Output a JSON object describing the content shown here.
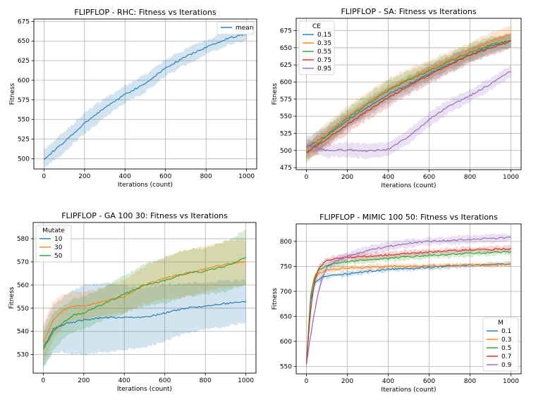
{
  "chart_data": [
    {
      "type": "line",
      "title": "FLIPFLOP - RHC: Fitness vs Iterations",
      "xlabel": "Iterations (count)",
      "ylabel": "Fitness",
      "xlim": [
        -50,
        1050
      ],
      "ylim": [
        487,
        678
      ],
      "xticks": [
        0,
        200,
        400,
        600,
        800,
        1000
      ],
      "yticks": [
        500,
        525,
        550,
        575,
        600,
        625,
        650,
        675
      ],
      "grid": true,
      "legend": {
        "title": "",
        "position": "upper-right"
      },
      "x": [
        0,
        100,
        200,
        300,
        400,
        500,
        600,
        700,
        800,
        900,
        1000
      ],
      "series": [
        {
          "name": "mean",
          "color": "#1f77b4",
          "values": [
            500,
            521,
            545,
            565,
            582,
            596,
            616,
            630,
            642,
            653,
            659
          ],
          "band": [
            12,
            13,
            13,
            12,
            11,
            11,
            10,
            10,
            9,
            9,
            8
          ]
        }
      ]
    },
    {
      "type": "line",
      "title": "FLIPFLOP - SA: Fitness vs Iterations",
      "xlabel": "Iterations (count)",
      "ylabel": "Fitness",
      "xlim": [
        -50,
        1050
      ],
      "ylim": [
        472,
        693
      ],
      "xticks": [
        0,
        200,
        400,
        600,
        800,
        1000
      ],
      "yticks": [
        475,
        500,
        525,
        550,
        575,
        600,
        625,
        650,
        675
      ],
      "grid": true,
      "legend": {
        "title": "CE",
        "position": "upper-left"
      },
      "x": [
        0,
        100,
        200,
        300,
        400,
        500,
        600,
        700,
        800,
        900,
        1000
      ],
      "series": [
        {
          "name": "0.15",
          "color": "#1f77b4",
          "values": [
            505,
            522,
            544,
            563,
            582,
            597,
            612,
            626,
            640,
            652,
            660
          ],
          "band": [
            14,
            14,
            13,
            13,
            13,
            12,
            12,
            12,
            11,
            11,
            10
          ]
        },
        {
          "name": "0.35",
          "color": "#ff7f0e",
          "values": [
            500,
            525,
            550,
            570,
            590,
            605,
            618,
            632,
            645,
            660,
            670
          ],
          "band": [
            14,
            14,
            15,
            15,
            15,
            14,
            13,
            13,
            12,
            12,
            12
          ]
        },
        {
          "name": "0.55",
          "color": "#2ca02c",
          "values": [
            496,
            522,
            547,
            568,
            588,
            603,
            616,
            630,
            643,
            654,
            661
          ],
          "band": [
            13,
            13,
            14,
            14,
            14,
            13,
            13,
            12,
            12,
            11,
            11
          ]
        },
        {
          "name": "0.75",
          "color": "#d62728",
          "values": [
            497,
            517,
            538,
            558,
            577,
            594,
            610,
            625,
            639,
            650,
            659
          ],
          "band": [
            12,
            13,
            13,
            13,
            14,
            13,
            13,
            12,
            12,
            11,
            11
          ]
        },
        {
          "name": "0.95",
          "color": "#9467bd",
          "values": [
            507,
            500,
            501,
            499,
            502,
            520,
            545,
            565,
            580,
            597,
            616
          ],
          "band": [
            8,
            10,
            10,
            10,
            10,
            10,
            10,
            10,
            9,
            9,
            8
          ]
        }
      ]
    },
    {
      "type": "line",
      "title": "FLIPFLOP - GA 100 30: Fitness vs Iterations",
      "xlabel": "Iterations (count)",
      "ylabel": "Fitness",
      "xlim": [
        -50,
        1050
      ],
      "ylim": [
        522,
        587
      ],
      "xticks": [
        0,
        200,
        400,
        600,
        800,
        1000
      ],
      "yticks": [
        530,
        540,
        550,
        560,
        570,
        580
      ],
      "grid": true,
      "legend": {
        "title": "Mutate",
        "position": "upper-left"
      },
      "x": [
        0,
        50,
        100,
        150,
        200,
        300,
        400,
        500,
        600,
        700,
        800,
        900,
        1000
      ],
      "series": [
        {
          "name": "10",
          "color": "#1f77b4",
          "values": [
            533,
            541,
            543,
            544,
            545,
            546,
            546,
            546,
            548,
            550,
            551,
            552,
            553
          ],
          "band": [
            9,
            10,
            12,
            14,
            15,
            15,
            14,
            13,
            12,
            11,
            10,
            10,
            9
          ]
        },
        {
          "name": "30",
          "color": "#ff7f0e",
          "values": [
            535,
            545,
            549,
            551,
            551,
            553,
            555,
            560,
            563,
            565,
            567,
            569,
            570
          ],
          "band": [
            8,
            8,
            7,
            6,
            6,
            6,
            7,
            8,
            9,
            10,
            10,
            10,
            10
          ]
        },
        {
          "name": "50",
          "color": "#2ca02c",
          "values": [
            532,
            540,
            544,
            547,
            548,
            552,
            556,
            560,
            562,
            565,
            566,
            568,
            572
          ],
          "band": [
            8,
            8,
            7,
            7,
            7,
            7,
            8,
            9,
            10,
            10,
            10,
            11,
            12
          ]
        }
      ]
    },
    {
      "type": "line",
      "title": "FLIPFLOP - MIMIC 100 50: Fitness vs Iterations",
      "xlabel": "Iterations (count)",
      "ylabel": "Fitness",
      "xlim": [
        -50,
        1050
      ],
      "ylim": [
        535,
        835
      ],
      "xticks": [
        0,
        200,
        400,
        600,
        800,
        1000
      ],
      "yticks": [
        550,
        600,
        650,
        700,
        750,
        800
      ],
      "grid": true,
      "legend": {
        "title": "M",
        "position": "lower-right"
      },
      "x": [
        0,
        20,
        40,
        60,
        80,
        100,
        150,
        200,
        300,
        400,
        500,
        600,
        700,
        800,
        900,
        1000
      ],
      "series": [
        {
          "name": "0.1",
          "color": "#1f77b4",
          "values": [
            555,
            680,
            715,
            725,
            728,
            730,
            733,
            735,
            740,
            744,
            746,
            748,
            750,
            752,
            754,
            755
          ],
          "band": [
            8,
            8,
            6,
            6,
            5,
            5,
            5,
            5,
            5,
            5,
            5,
            5,
            5,
            4,
            4,
            4
          ]
        },
        {
          "name": "0.3",
          "color": "#ff7f0e",
          "values": [
            555,
            690,
            725,
            735,
            740,
            742,
            745,
            747,
            748,
            750,
            750,
            751,
            752,
            753,
            753,
            754
          ],
          "band": [
            8,
            8,
            6,
            5,
            5,
            5,
            5,
            5,
            5,
            5,
            5,
            4,
            4,
            4,
            4,
            4
          ]
        },
        {
          "name": "0.5",
          "color": "#2ca02c",
          "values": [
            555,
            690,
            730,
            742,
            748,
            752,
            756,
            759,
            763,
            766,
            769,
            772,
            774,
            776,
            778,
            779
          ],
          "band": [
            8,
            8,
            7,
            6,
            6,
            6,
            6,
            6,
            6,
            6,
            6,
            6,
            6,
            6,
            6,
            6
          ]
        },
        {
          "name": "0.7",
          "color": "#d62728",
          "values": [
            555,
            660,
            720,
            745,
            755,
            762,
            766,
            768,
            770,
            773,
            776,
            779,
            781,
            783,
            784,
            786
          ],
          "band": [
            8,
            9,
            8,
            7,
            6,
            6,
            6,
            6,
            6,
            6,
            6,
            6,
            6,
            6,
            6,
            6
          ]
        },
        {
          "name": "0.9",
          "color": "#9467bd",
          "values": [
            555,
            610,
            660,
            700,
            730,
            748,
            762,
            770,
            782,
            790,
            796,
            800,
            802,
            804,
            806,
            808
          ],
          "band": [
            8,
            10,
            10,
            10,
            9,
            9,
            8,
            8,
            8,
            8,
            8,
            8,
            8,
            8,
            8,
            8
          ]
        }
      ]
    }
  ]
}
